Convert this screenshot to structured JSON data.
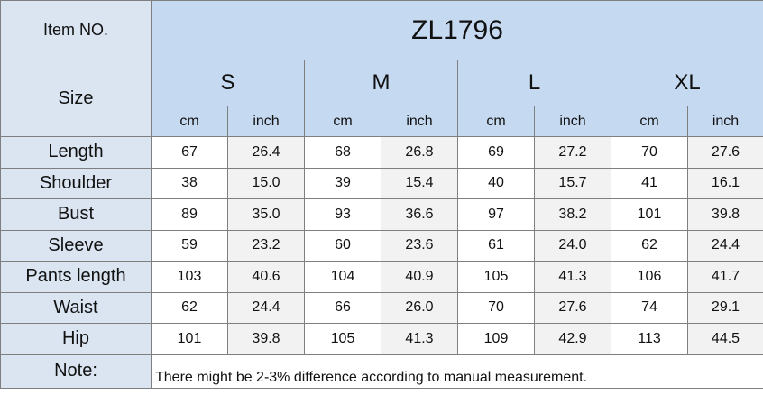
{
  "header": {
    "item_label": "Item NO.",
    "item_value": "ZL1796",
    "size_label": "Size",
    "sizes": [
      "S",
      "M",
      "L",
      "XL"
    ],
    "units": [
      "cm",
      "inch"
    ]
  },
  "table": {
    "rows": [
      {
        "label": "Length",
        "values": [
          "67",
          "26.4",
          "68",
          "26.8",
          "69",
          "27.2",
          "70",
          "27.6"
        ]
      },
      {
        "label": "Shoulder",
        "values": [
          "38",
          "15.0",
          "39",
          "15.4",
          "40",
          "15.7",
          "41",
          "16.1"
        ]
      },
      {
        "label": "Bust",
        "values": [
          "89",
          "35.0",
          "93",
          "36.6",
          "97",
          "38.2",
          "101",
          "39.8"
        ]
      },
      {
        "label": "Sleeve",
        "values": [
          "59",
          "23.2",
          "60",
          "23.6",
          "61",
          "24.0",
          "62",
          "24.4"
        ]
      },
      {
        "label": "Pants length",
        "values": [
          "103",
          "40.6",
          "104",
          "40.9",
          "105",
          "41.3",
          "106",
          "41.7"
        ]
      },
      {
        "label": "Waist",
        "values": [
          "62",
          "24.4",
          "66",
          "26.0",
          "70",
          "27.6",
          "74",
          "29.1"
        ]
      },
      {
        "label": "Hip",
        "values": [
          "101",
          "39.8",
          "105",
          "41.3",
          "109",
          "42.9",
          "113",
          "44.5"
        ]
      }
    ]
  },
  "note": {
    "label": "Note:",
    "text": "There might be 2-3% difference according to manual measurement."
  }
}
